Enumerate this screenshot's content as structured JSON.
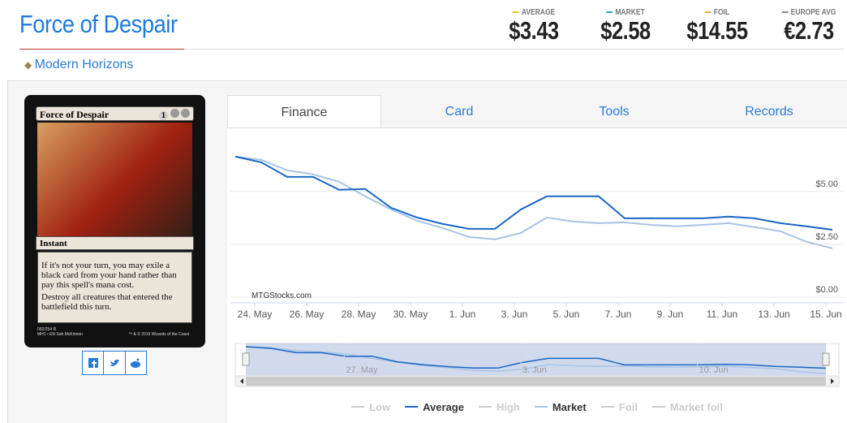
{
  "header": {
    "title": "Force of Despair",
    "set": "Modern Horizons"
  },
  "prices": [
    {
      "label": "AVERAGE",
      "value": "$3.43",
      "color": "#f0c020"
    },
    {
      "label": "MARKET",
      "value": "$2.58",
      "color": "#2aa0c8"
    },
    {
      "label": "FOIL",
      "value": "$14.55",
      "color": "#f0a040"
    },
    {
      "label": "EUROPE AVG",
      "value": "€2.73",
      "color": "#888888"
    }
  ],
  "card": {
    "name": "Force of Despair",
    "generic_mana": "1",
    "type_line": "Instant",
    "rules": [
      "If it's not your turn, you may exile a black card from your hand rather than pay this spell's mana cost.",
      "Destroy all creatures that entered the battlefield this turn."
    ],
    "collector": "092/254 R",
    "set_line": "MH1 • EN",
    "artist": "Seb McKinnon",
    "copyright": "™ & © 2019 Wizards of the Coast"
  },
  "tabs": [
    "Finance",
    "Card",
    "Tools",
    "Records"
  ],
  "chart_data": {
    "type": "line",
    "credit": "MTGStocks.com",
    "x": [
      "23. May",
      "24. May",
      "25. May",
      "26. May",
      "27. May",
      "28. May",
      "29. May",
      "30. May",
      "31. May",
      "1. Jun",
      "2. Jun",
      "3. Jun",
      "4. Jun",
      "5. Jun",
      "6. Jun",
      "7. Jun",
      "8. Jun",
      "9. Jun",
      "10. Jun",
      "11. Jun",
      "12. Jun",
      "13. Jun",
      "14. Jun",
      "15. Jun"
    ],
    "xlim": [
      "23. May",
      "15. Jun"
    ],
    "xticks": [
      "24. May",
      "26. May",
      "28. May",
      "30. May",
      "1. Jun",
      "3. Jun",
      "5. Jun",
      "7. Jun",
      "9. Jun",
      "11. Jun",
      "13. Jun",
      "15. Jun"
    ],
    "navigator_ticks": [
      "27. May",
      "3. Jun",
      "10. Jun"
    ],
    "ylim": [
      0,
      7.3
    ],
    "yticks": [
      {
        "value": 0,
        "label": "$0.00"
      },
      {
        "value": 2.5,
        "label": "$2.50"
      },
      {
        "value": 5,
        "label": "$5.00"
      }
    ],
    "grid": true,
    "series": [
      {
        "name": "Low",
        "color": "#cccccc",
        "visible": false
      },
      {
        "name": "Average",
        "color": "#1a66c4",
        "visible": true,
        "values": [
          6.65,
          6.38,
          5.69,
          5.69,
          5.08,
          5.12,
          4.23,
          3.77,
          3.46,
          3.23,
          3.23,
          4.15,
          4.77,
          4.77,
          4.77,
          3.73,
          3.73,
          3.73,
          3.73,
          3.81,
          3.73,
          3.5,
          3.35,
          3.19
        ]
      },
      {
        "name": "High",
        "color": "#cccccc",
        "visible": false
      },
      {
        "name": "Market",
        "color": "#a7c3e6",
        "visible": true,
        "values": [
          6.65,
          6.5,
          6.0,
          5.81,
          5.46,
          4.77,
          4.15,
          3.62,
          3.27,
          2.85,
          2.73,
          3.04,
          3.77,
          3.58,
          3.5,
          3.54,
          3.42,
          3.35,
          3.42,
          3.5,
          3.31,
          3.12,
          2.62,
          2.31
        ]
      },
      {
        "name": "Foil",
        "color": "#cccccc",
        "visible": false
      },
      {
        "name": "Market foil",
        "color": "#cccccc",
        "visible": false
      }
    ]
  }
}
